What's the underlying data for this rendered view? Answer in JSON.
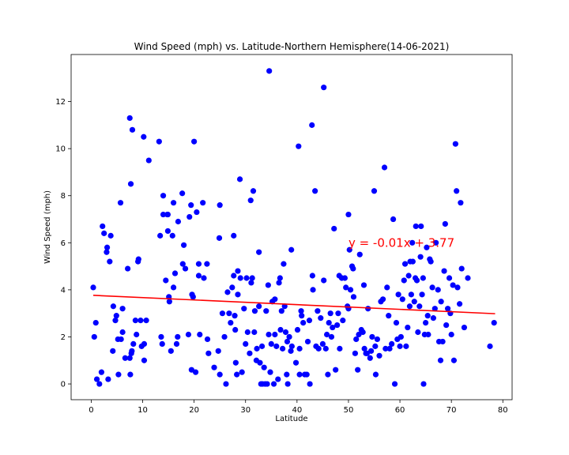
{
  "chart_data": {
    "type": "scatter",
    "title": "Wind Speed (mph) vs. Latitude-Northern Hemisphere(14-06-2021)",
    "xlabel": "Latitude",
    "ylabel": "Wind Speed (mph)",
    "xlim": [
      -3.9,
      81.8
    ],
    "ylim": [
      -0.67,
      14.0
    ],
    "xticks": [
      0,
      10,
      20,
      30,
      40,
      50,
      60,
      70,
      80
    ],
    "yticks": [
      0,
      2,
      4,
      6,
      8,
      10,
      12
    ],
    "grid": false,
    "point_color": "#0000ff",
    "line_color": "#ff0000",
    "annotation": {
      "text": "y = -0.01x + 3.77",
      "x": 50,
      "y": 6.0,
      "color": "#ff0000"
    },
    "regression": {
      "slope": -0.01,
      "intercept": 3.77,
      "x_range": [
        0.4,
        78.5
      ]
    },
    "series": [
      {
        "points": [
          [
            0.4,
            4.1
          ],
          [
            0.6,
            2.0
          ],
          [
            0.9,
            2.6
          ],
          [
            1.1,
            0.2
          ],
          [
            1.6,
            0.0
          ],
          [
            2.0,
            0.5
          ],
          [
            2.2,
            6.7
          ],
          [
            2.5,
            6.4
          ],
          [
            3.0,
            5.6
          ],
          [
            3.1,
            5.8
          ],
          [
            3.3,
            0.2
          ],
          [
            3.6,
            5.2
          ],
          [
            3.8,
            6.3
          ],
          [
            4.2,
            1.4
          ],
          [
            4.3,
            3.3
          ],
          [
            4.7,
            2.7
          ],
          [
            4.9,
            2.9
          ],
          [
            5.2,
            1.9
          ],
          [
            5.3,
            0.4
          ],
          [
            5.7,
            7.7
          ],
          [
            5.8,
            1.9
          ],
          [
            6.1,
            2.2
          ],
          [
            6.1,
            3.2
          ],
          [
            6.6,
            1.1
          ],
          [
            7.1,
            4.9
          ],
          [
            7.5,
            11.3
          ],
          [
            7.7,
            8.5
          ],
          [
            7.5,
            1.1
          ],
          [
            7.8,
            1.3
          ],
          [
            7.6,
            0.4
          ],
          [
            7.9,
            1.4
          ],
          [
            8.0,
            10.8
          ],
          [
            8.2,
            1.7
          ],
          [
            8.6,
            2.7
          ],
          [
            8.8,
            2.1
          ],
          [
            9.1,
            5.2
          ],
          [
            9.2,
            5.3
          ],
          [
            9.6,
            2.7
          ],
          [
            9.8,
            1.6
          ],
          [
            10.2,
            10.5
          ],
          [
            10.3,
            1.7
          ],
          [
            10.3,
            1.0
          ],
          [
            10.7,
            2.7
          ],
          [
            11.2,
            9.5
          ],
          [
            13.2,
            10.3
          ],
          [
            13.4,
            6.3
          ],
          [
            13.6,
            2.0
          ],
          [
            13.8,
            1.7
          ],
          [
            14.0,
            8.0
          ],
          [
            14.0,
            7.2
          ],
          [
            14.5,
            4.4
          ],
          [
            14.8,
            7.2
          ],
          [
            14.9,
            7.2
          ],
          [
            14.9,
            6.5
          ],
          [
            15.1,
            3.7
          ],
          [
            15.2,
            3.5
          ],
          [
            15.5,
            1.4
          ],
          [
            15.8,
            6.3
          ],
          [
            16.0,
            7.7
          ],
          [
            16.0,
            4.1
          ],
          [
            16.3,
            4.7
          ],
          [
            16.6,
            1.7
          ],
          [
            16.8,
            2.0
          ],
          [
            16.9,
            6.9
          ],
          [
            17.7,
            8.1
          ],
          [
            17.8,
            5.1
          ],
          [
            18.0,
            5.9
          ],
          [
            18.3,
            4.9
          ],
          [
            18.9,
            2.1
          ],
          [
            19.1,
            7.1
          ],
          [
            19.4,
            7.6
          ],
          [
            19.5,
            0.6
          ],
          [
            19.6,
            3.8
          ],
          [
            19.8,
            3.7
          ],
          [
            20.0,
            10.3
          ],
          [
            20.3,
            0.5
          ],
          [
            20.5,
            7.3
          ],
          [
            20.9,
            5.1
          ],
          [
            20.9,
            4.6
          ],
          [
            21.1,
            2.1
          ],
          [
            21.7,
            7.7
          ],
          [
            21.9,
            4.5
          ],
          [
            22.5,
            5.1
          ],
          [
            22.6,
            1.9
          ],
          [
            22.8,
            1.3
          ],
          [
            23.9,
            0.7
          ],
          [
            24.7,
            1.4
          ],
          [
            24.9,
            6.2
          ],
          [
            25.0,
            7.6
          ],
          [
            25.0,
            0.4
          ],
          [
            25.5,
            3.0
          ],
          [
            25.9,
            2.0
          ],
          [
            26.2,
            0.0
          ],
          [
            26.5,
            3.9
          ],
          [
            26.8,
            3.0
          ],
          [
            27.1,
            2.6
          ],
          [
            27.4,
            4.1
          ],
          [
            27.7,
            4.6
          ],
          [
            27.7,
            6.3
          ],
          [
            27.9,
            2.9
          ],
          [
            28.1,
            0.9
          ],
          [
            28.0,
            2.3
          ],
          [
            28.3,
            0.4
          ],
          [
            28.5,
            3.8
          ],
          [
            28.5,
            4.8
          ],
          [
            28.9,
            8.7
          ],
          [
            29.0,
            4.5
          ],
          [
            29.3,
            0.5
          ],
          [
            29.7,
            3.2
          ],
          [
            30.0,
            1.7
          ],
          [
            30.2,
            4.5
          ],
          [
            30.4,
            2.2
          ],
          [
            30.8,
            1.3
          ],
          [
            31.0,
            7.8
          ],
          [
            31.1,
            4.3
          ],
          [
            31.3,
            4.5
          ],
          [
            31.5,
            8.2
          ],
          [
            31.7,
            2.2
          ],
          [
            31.8,
            3.1
          ],
          [
            32.1,
            1.0
          ],
          [
            32.2,
            1.5
          ],
          [
            32.6,
            5.6
          ],
          [
            32.6,
            3.3
          ],
          [
            32.8,
            0.9
          ],
          [
            33.0,
            0.0
          ],
          [
            33.2,
            1.6
          ],
          [
            33.3,
            0.0
          ],
          [
            33.6,
            0.7
          ],
          [
            33.8,
            0.0
          ],
          [
            34.0,
            3.1
          ],
          [
            34.2,
            0.0
          ],
          [
            34.4,
            4.2
          ],
          [
            34.6,
            13.3
          ],
          [
            34.5,
            2.1
          ],
          [
            34.8,
            0.5
          ],
          [
            35.0,
            1.7
          ],
          [
            35.2,
            3.5
          ],
          [
            35.5,
            0.0
          ],
          [
            35.7,
            3.6
          ],
          [
            35.7,
            2.1
          ],
          [
            36.0,
            1.6
          ],
          [
            36.3,
            0.2
          ],
          [
            36.5,
            4.3
          ],
          [
            36.7,
            4.5
          ],
          [
            36.8,
            2.3
          ],
          [
            37.0,
            3.1
          ],
          [
            37.2,
            1.5
          ],
          [
            37.4,
            5.1
          ],
          [
            37.6,
            3.3
          ],
          [
            37.8,
            2.2
          ],
          [
            38.0,
            0.4
          ],
          [
            38.1,
            1.8
          ],
          [
            38.2,
            0.0
          ],
          [
            38.5,
            2.0
          ],
          [
            38.8,
            1.4
          ],
          [
            38.9,
            5.7
          ],
          [
            39.0,
            1.6
          ],
          [
            39.8,
            0.9
          ],
          [
            40.1,
            2.3
          ],
          [
            40.3,
            10.1
          ],
          [
            40.5,
            1.5
          ],
          [
            40.5,
            0.4
          ],
          [
            40.8,
            3.1
          ],
          [
            40.9,
            2.9
          ],
          [
            41.2,
            2.6
          ],
          [
            41.5,
            0.4
          ],
          [
            41.9,
            0.4
          ],
          [
            42.1,
            1.8
          ],
          [
            42.4,
            2.7
          ],
          [
            42.5,
            0.0
          ],
          [
            42.9,
            11.0
          ],
          [
            43.0,
            4.6
          ],
          [
            43.1,
            4.0
          ],
          [
            43.5,
            8.2
          ],
          [
            43.7,
            1.6
          ],
          [
            44.0,
            3.1
          ],
          [
            44.2,
            1.5
          ],
          [
            44.6,
            2.8
          ],
          [
            45.0,
            1.7
          ],
          [
            45.2,
            12.6
          ],
          [
            45.2,
            4.4
          ],
          [
            45.6,
            1.5
          ],
          [
            45.8,
            2.1
          ],
          [
            46.0,
            0.4
          ],
          [
            46.2,
            2.6
          ],
          [
            46.5,
            3.0
          ],
          [
            46.7,
            2.0
          ],
          [
            46.9,
            2.4
          ],
          [
            47.2,
            6.6
          ],
          [
            47.5,
            0.6
          ],
          [
            47.8,
            2.5
          ],
          [
            48.0,
            3.0
          ],
          [
            48.2,
            4.6
          ],
          [
            48.3,
            1.5
          ],
          [
            48.7,
            4.5
          ],
          [
            48.9,
            2.7
          ],
          [
            49.3,
            4.5
          ],
          [
            49.5,
            4.1
          ],
          [
            49.8,
            3.3
          ],
          [
            50.0,
            7.2
          ],
          [
            50.0,
            3.2
          ],
          [
            50.2,
            5.7
          ],
          [
            50.4,
            4.0
          ],
          [
            50.7,
            5.0
          ],
          [
            50.9,
            4.9
          ],
          [
            51.0,
            3.7
          ],
          [
            51.3,
            1.3
          ],
          [
            51.5,
            1.9
          ],
          [
            51.8,
            0.6
          ],
          [
            52.0,
            2.1
          ],
          [
            52.2,
            5.5
          ],
          [
            52.5,
            2.3
          ],
          [
            52.8,
            2.2
          ],
          [
            53.0,
            4.2
          ],
          [
            53.1,
            1.5
          ],
          [
            53.4,
            1.3
          ],
          [
            53.6,
            1.3
          ],
          [
            53.8,
            3.2
          ],
          [
            54.2,
            1.1
          ],
          [
            54.4,
            1.4
          ],
          [
            54.6,
            2.0
          ],
          [
            55.0,
            8.2
          ],
          [
            55.2,
            1.6
          ],
          [
            55.3,
            0.4
          ],
          [
            55.6,
            1.9
          ],
          [
            56.0,
            1.2
          ],
          [
            56.3,
            3.5
          ],
          [
            56.7,
            3.6
          ],
          [
            57.0,
            9.2
          ],
          [
            57.2,
            1.5
          ],
          [
            57.5,
            4.1
          ],
          [
            57.8,
            2.9
          ],
          [
            58.0,
            1.5
          ],
          [
            58.4,
            1.7
          ],
          [
            58.7,
            7.0
          ],
          [
            59.0,
            0.0
          ],
          [
            59.3,
            2.6
          ],
          [
            59.5,
            1.9
          ],
          [
            59.7,
            3.8
          ],
          [
            60.0,
            1.6
          ],
          [
            60.2,
            2.0
          ],
          [
            60.5,
            3.6
          ],
          [
            60.8,
            4.4
          ],
          [
            61.0,
            5.1
          ],
          [
            61.2,
            1.6
          ],
          [
            61.5,
            2.4
          ],
          [
            61.7,
            4.6
          ],
          [
            61.9,
            3.3
          ],
          [
            62.0,
            5.2
          ],
          [
            62.2,
            3.8
          ],
          [
            62.4,
            6.0
          ],
          [
            62.5,
            5.2
          ],
          [
            62.8,
            3.5
          ],
          [
            63.0,
            4.5
          ],
          [
            63.1,
            6.7
          ],
          [
            63.3,
            4.4
          ],
          [
            63.5,
            2.2
          ],
          [
            63.8,
            3.3
          ],
          [
            64.0,
            5.4
          ],
          [
            64.1,
            6.7
          ],
          [
            64.3,
            3.8
          ],
          [
            64.5,
            4.5
          ],
          [
            64.6,
            0.0
          ],
          [
            64.8,
            2.1
          ],
          [
            65.0,
            2.6
          ],
          [
            65.2,
            5.8
          ],
          [
            65.4,
            2.9
          ],
          [
            65.5,
            2.1
          ],
          [
            65.8,
            5.3
          ],
          [
            66.0,
            5.2
          ],
          [
            66.3,
            4.1
          ],
          [
            66.5,
            2.8
          ],
          [
            66.8,
            3.2
          ],
          [
            67.0,
            6.0
          ],
          [
            67.4,
            4.0
          ],
          [
            67.6,
            1.8
          ],
          [
            67.9,
            1.0
          ],
          [
            68.0,
            3.5
          ],
          [
            68.3,
            1.8
          ],
          [
            68.6,
            4.8
          ],
          [
            68.8,
            6.8
          ],
          [
            69.0,
            2.5
          ],
          [
            69.3,
            3.2
          ],
          [
            69.6,
            4.5
          ],
          [
            69.8,
            3.0
          ],
          [
            70.0,
            2.1
          ],
          [
            70.3,
            4.2
          ],
          [
            70.5,
            1.0
          ],
          [
            70.8,
            10.2
          ],
          [
            71.0,
            8.2
          ],
          [
            71.2,
            4.1
          ],
          [
            71.6,
            3.4
          ],
          [
            71.8,
            7.7
          ],
          [
            72.0,
            4.9
          ],
          [
            72.5,
            2.4
          ],
          [
            73.2,
            4.5
          ],
          [
            77.5,
            1.6
          ],
          [
            78.3,
            2.6
          ]
        ]
      }
    ]
  }
}
